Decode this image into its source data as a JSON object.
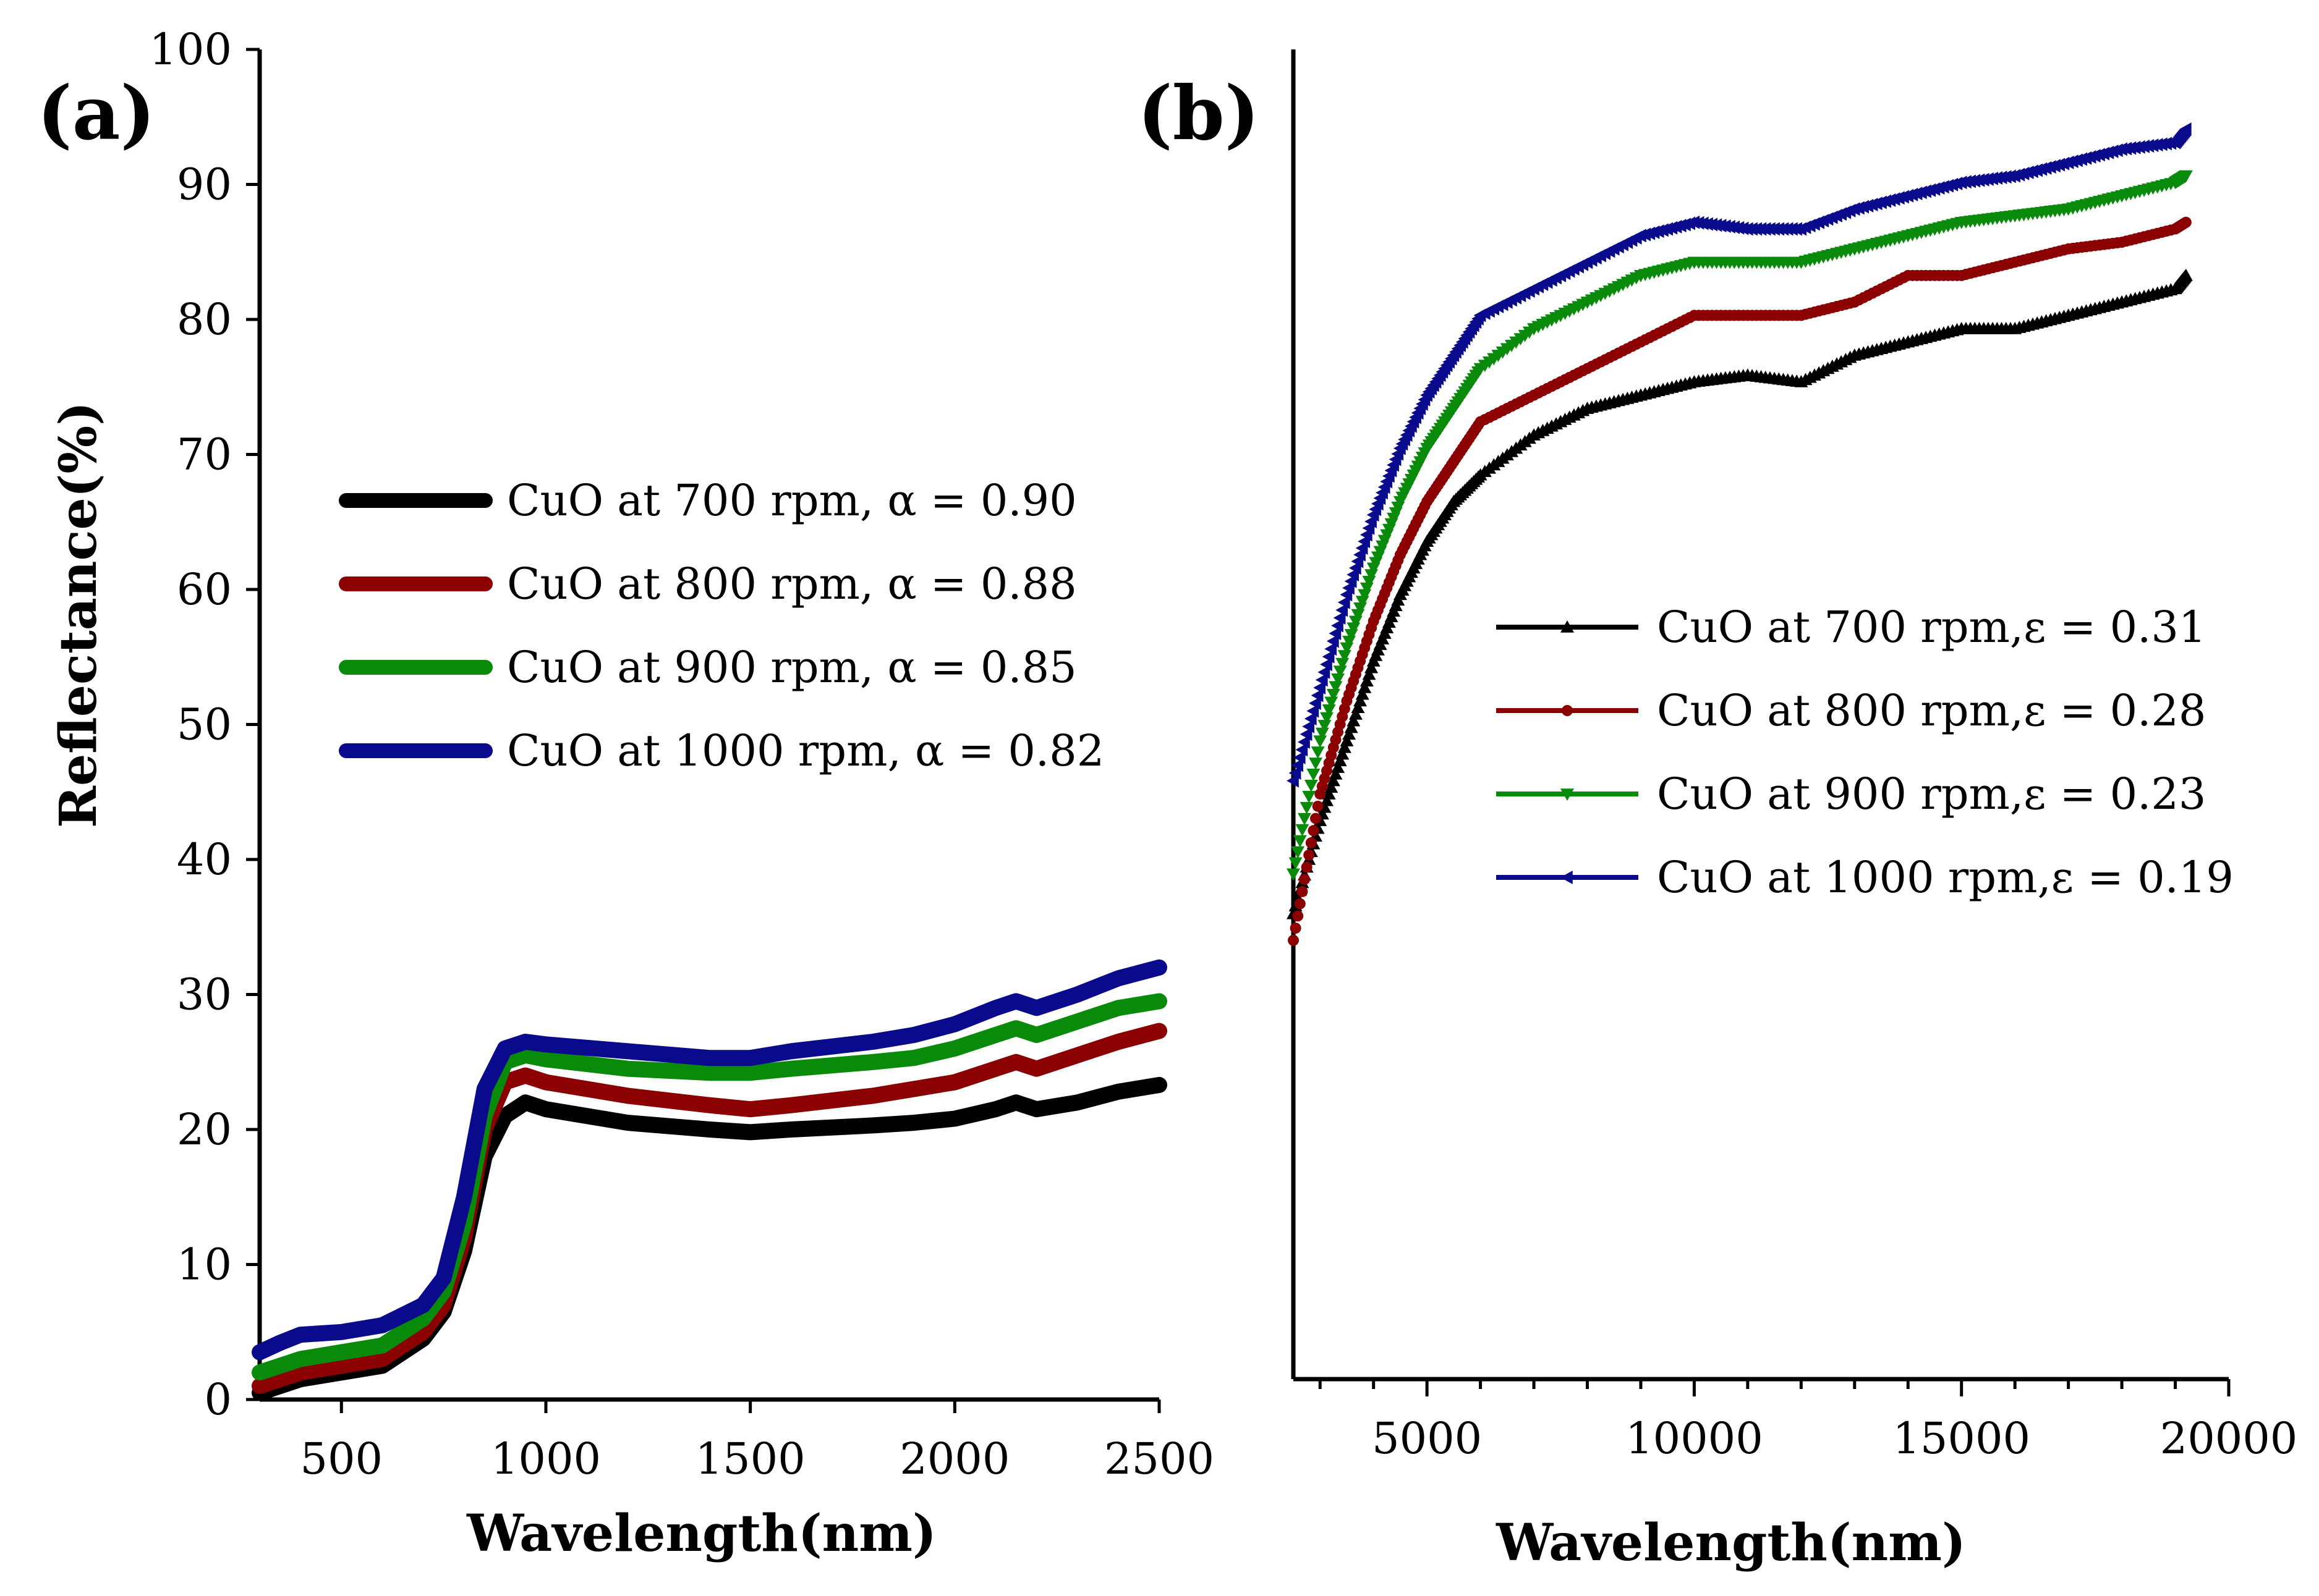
{
  "chart_data": [
    {
      "panel_label": "(a)",
      "type": "line",
      "xlabel": "Wavelength(nm)",
      "ylabel": "Reflectance(%)",
      "xlim": [
        300,
        2500
      ],
      "ylim": [
        0,
        100
      ],
      "x_ticks": [
        500,
        1000,
        1500,
        2000,
        2500
      ],
      "y_ticks": [
        0,
        10,
        20,
        30,
        40,
        50,
        60,
        70,
        80,
        90,
        100
      ],
      "x_tick_labels": [
        "500",
        "1000",
        "1500",
        "2000",
        "2500"
      ],
      "y_tick_labels": [
        "0",
        "10",
        "20",
        "30",
        "40",
        "50",
        "60",
        "70",
        "80",
        "90",
        "100"
      ],
      "legend_position": "middle-left",
      "x": [
        300,
        350,
        400,
        500,
        600,
        700,
        750,
        800,
        850,
        900,
        950,
        1000,
        1200,
        1400,
        1500,
        1600,
        1800,
        1900,
        2000,
        2100,
        2150,
        2200,
        2300,
        2400,
        2500
      ],
      "series": [
        {
          "name": "CuO at 700 rpm, α = 0.90",
          "color": "#000000",
          "values": [
            0.5,
            1.0,
            1.5,
            2.0,
            2.5,
            4.5,
            6.5,
            11,
            18,
            21,
            22,
            21.5,
            20.5,
            20,
            19.8,
            20,
            20.3,
            20.5,
            20.8,
            21.5,
            22,
            21.5,
            22,
            22.8,
            23.3
          ]
        },
        {
          "name": "CuO at 800 rpm, α = 0.88",
          "color": "#8b0000",
          "values": [
            1.0,
            1.5,
            2.0,
            2.5,
            3.0,
            5.0,
            7.0,
            12,
            20,
            23.5,
            24,
            23.5,
            22.5,
            21.8,
            21.5,
            21.8,
            22.5,
            23,
            23.5,
            24.5,
            25,
            24.5,
            25.5,
            26.5,
            27.3
          ]
        },
        {
          "name": "CuO at 900 rpm, α = 0.85",
          "color": "#0a8a0a",
          "values": [
            2.0,
            2.5,
            3.0,
            3.5,
            4.0,
            6.0,
            8.0,
            13,
            21,
            25,
            25.5,
            25.2,
            24.5,
            24.2,
            24.2,
            24.5,
            25,
            25.3,
            26,
            27,
            27.5,
            27,
            28,
            29,
            29.5
          ]
        },
        {
          "name": "CuO at 1000 rpm, α = 0.82",
          "color": "#0a0a8c",
          "values": [
            3.5,
            4.2,
            4.8,
            5.0,
            5.5,
            7.0,
            9.0,
            15,
            23,
            26,
            26.5,
            26.3,
            25.8,
            25.3,
            25.3,
            25.8,
            26.5,
            27,
            27.8,
            29,
            29.5,
            29,
            30,
            31.2,
            32
          ]
        }
      ]
    },
    {
      "panel_label": "(b)",
      "type": "scatter",
      "xlabel": "Wavelength(nm)",
      "ylabel": "",
      "xlim": [
        2500,
        20000
      ],
      "ylim": [
        0,
        100
      ],
      "x_ticks": [
        5000,
        10000,
        15000,
        20000
      ],
      "x_tick_labels": [
        "5000",
        "10000",
        "15000",
        "20000"
      ],
      "legend_position": "middle-right",
      "x": [
        2500,
        3000,
        3500,
        4000,
        4500,
        5000,
        5500,
        6000,
        7000,
        8000,
        9000,
        10000,
        11000,
        12000,
        13000,
        14000,
        15000,
        16000,
        17000,
        18000,
        19000,
        19200
      ],
      "series": [
        {
          "name": "CuO at 700 rpm,ε = 0.31",
          "color": "#000000",
          "marker": "triangle-up",
          "values": [
            35,
            42,
            48,
            54,
            59,
            63,
            66,
            68,
            71,
            73,
            74,
            75,
            75.5,
            75,
            77,
            78,
            79,
            79,
            80,
            81,
            82,
            83
          ]
        },
        {
          "name": "CuO at 800 rpm,ε = 0.28",
          "color": "#8b0000",
          "marker": "circle",
          "values": [
            33,
            44,
            51,
            57,
            62,
            66,
            69,
            72,
            74,
            76,
            78,
            80,
            80,
            80,
            81,
            83,
            83,
            84,
            85,
            85.5,
            86.5,
            87
          ]
        },
        {
          "name": "CuO at 900 rpm,ε = 0.23",
          "color": "#0a8a0a",
          "marker": "triangle-down",
          "values": [
            38,
            48,
            55,
            61,
            66,
            70,
            73,
            76,
            79,
            81,
            83,
            84,
            84,
            84,
            85,
            86,
            87,
            87.5,
            88,
            89,
            90,
            90.5
          ]
        },
        {
          "name": "CuO at 1000 rpm,ε = 0.19",
          "color": "#0a0a8c",
          "marker": "triangle-left",
          "values": [
            45,
            52,
            59,
            65,
            70,
            74,
            77,
            80,
            82,
            84,
            86,
            87,
            86.5,
            86.5,
            88,
            89,
            90,
            90.5,
            91.5,
            92.5,
            93,
            94
          ]
        }
      ]
    }
  ]
}
